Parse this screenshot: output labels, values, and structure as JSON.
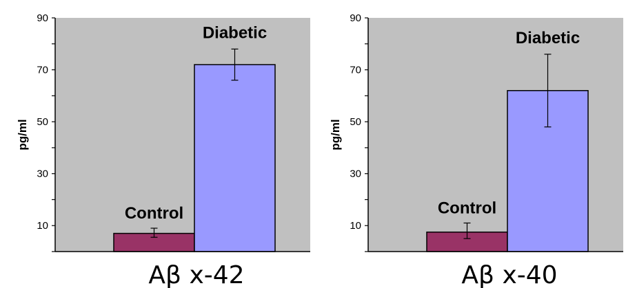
{
  "colors": {
    "plot_background": "#c0c0c0",
    "control_bar": "#993366",
    "diabetic_bar": "#9999ff",
    "axis": "#000000"
  },
  "chart_data": [
    {
      "type": "bar",
      "xlabel": "Aβ x-42",
      "ylabel": "pg/ml",
      "ylim": [
        0,
        90
      ],
      "yticks": [
        10,
        30,
        50,
        70,
        90
      ],
      "grid": false,
      "categories": [
        "Control",
        "Diabetic"
      ],
      "values": [
        7,
        72
      ],
      "error_low": [
        5.5,
        66
      ],
      "error_high": [
        9,
        78
      ]
    },
    {
      "type": "bar",
      "xlabel": "Aβ x-40",
      "ylabel": "pg/ml",
      "ylim": [
        0,
        90
      ],
      "yticks": [
        10,
        30,
        50,
        70,
        90
      ],
      "grid": false,
      "categories": [
        "Control",
        "Diabetic"
      ],
      "values": [
        7.5,
        62
      ],
      "error_low": [
        5,
        48
      ],
      "error_high": [
        11,
        76
      ]
    }
  ]
}
